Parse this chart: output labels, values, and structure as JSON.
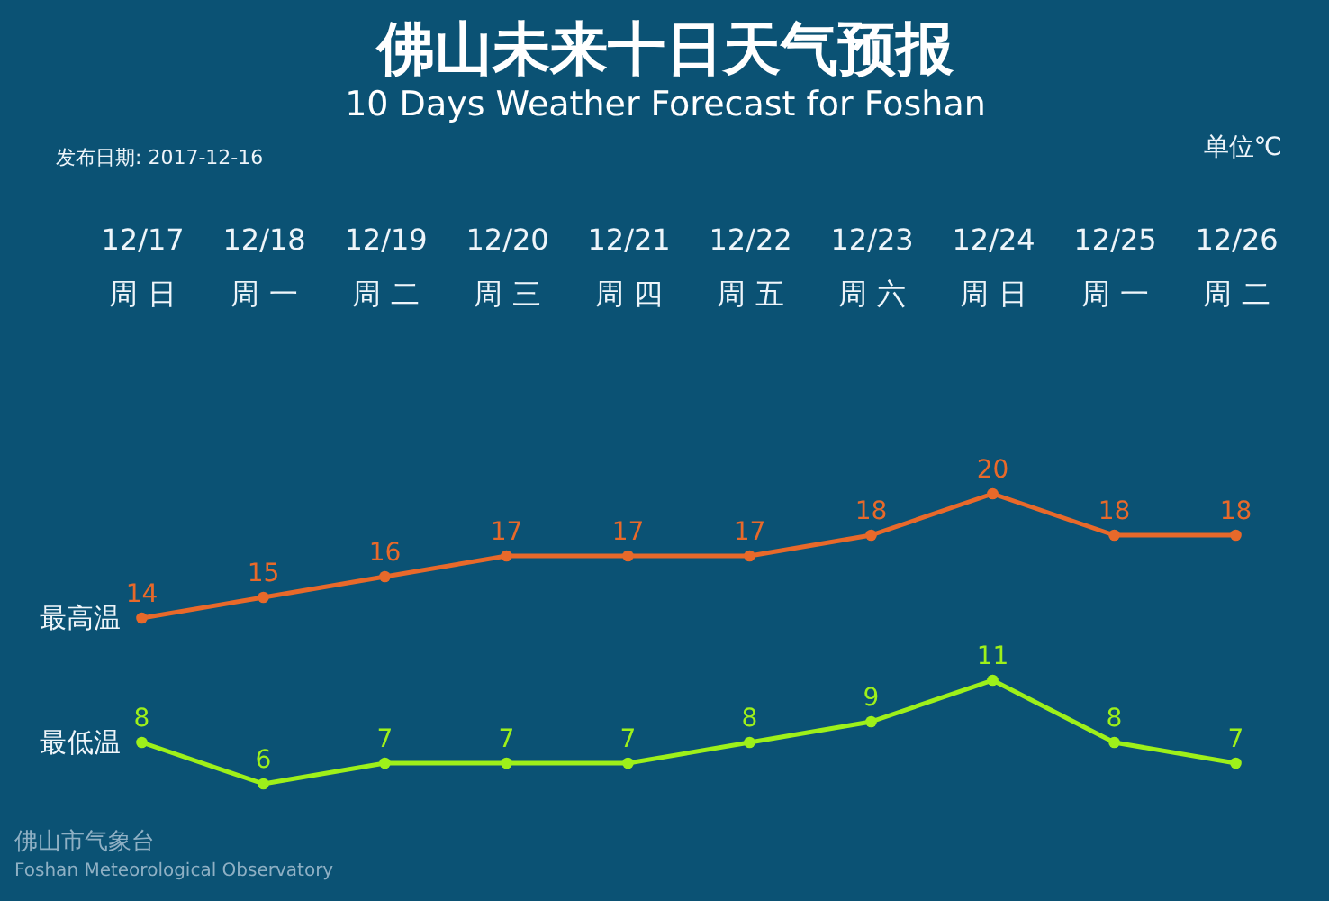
{
  "chart_data": {
    "type": "line",
    "title": "佛山未来十日天气预报",
    "subtitle": "10 Days Weather Forecast for Foshan",
    "categories": [
      "12/17\n周 日",
      "12/18\n周 一",
      "12/19\n周 二",
      "12/20\n周 三",
      "12/21\n周 四",
      "12/22\n周 五",
      "12/23\n周 六",
      "12/24\n周 日",
      "12/25\n周 一",
      "12/26\n周 二"
    ],
    "series": [
      {
        "name": "最高温",
        "color": "#e8692a",
        "values": [
          14,
          15,
          16,
          17,
          17,
          17,
          18,
          20,
          18,
          18
        ]
      },
      {
        "name": "最低温",
        "color": "#9ef01a",
        "values": [
          8,
          6,
          7,
          7,
          7,
          8,
          9,
          11,
          8,
          7
        ]
      }
    ],
    "data_labels": true,
    "marker": "circle",
    "line_style": "solid",
    "legend": false,
    "grid": false,
    "tick_labels": "x",
    "annotations": [
      "发布日期: 2017-12-16",
      "单位℃",
      "佛山市气象台",
      "Foshan Meteorological Observatory"
    ]
  }
}
